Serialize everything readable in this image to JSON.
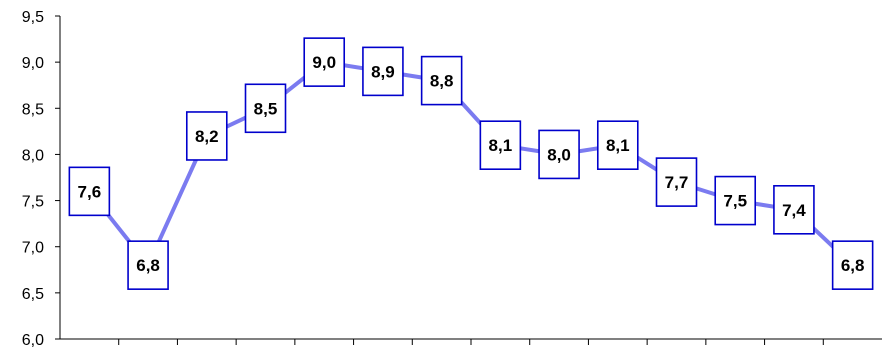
{
  "chart_data": {
    "type": "line",
    "title": "",
    "xlabel": "",
    "ylabel": "",
    "ylim": [
      6.0,
      9.5
    ],
    "y_ticks": [
      "6,0",
      "6,5",
      "7,0",
      "7,5",
      "8,0",
      "8,5",
      "9,0",
      "9,5"
    ],
    "grid": false,
    "legend": "none",
    "series": [
      {
        "values": [
          7.6,
          6.8,
          8.2,
          8.5,
          9.0,
          8.9,
          8.8,
          8.1,
          8.0,
          8.1,
          7.7,
          7.5,
          7.4,
          6.8
        ],
        "labels": [
          "7,6",
          "6,8",
          "8,2",
          "8,5",
          "9,0",
          "8,9",
          "8,8",
          "8,1",
          "8,0",
          "8,1",
          "7,7",
          "7,5",
          "7,4",
          "6,8"
        ],
        "line_color": "#7b7bf0",
        "label_border_color": "#0000cc"
      }
    ]
  }
}
